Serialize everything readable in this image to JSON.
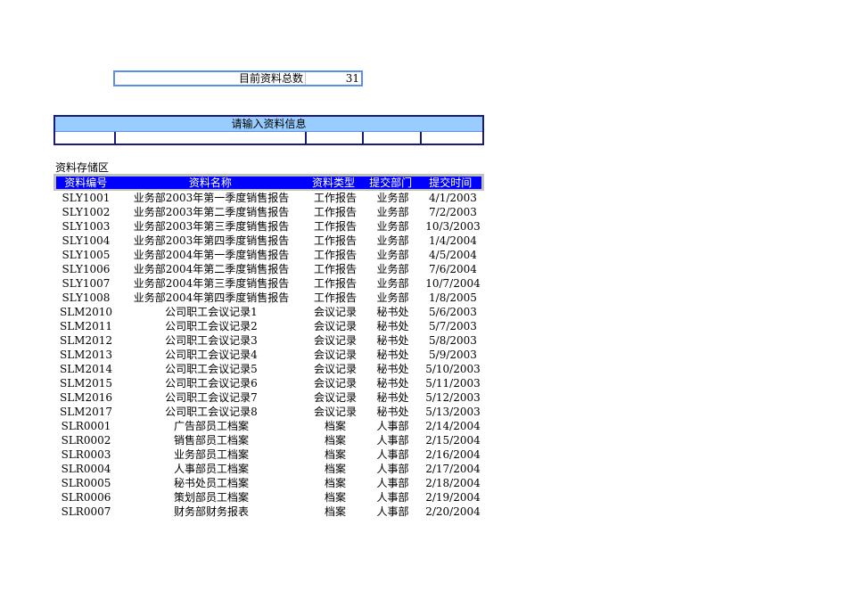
{
  "summary": {
    "label": "目前资料总数",
    "value": "31"
  },
  "input": {
    "title": "请输入资料信息"
  },
  "storage": {
    "title": "资料存储区",
    "headers": [
      "资料编号",
      "资料名称",
      "资料类型",
      "提交部门",
      "提交时间"
    ],
    "rows": [
      [
        "SLY1001",
        "业务部2003年第一季度销售报告",
        "工作报告",
        "业务部",
        "4/1/2003"
      ],
      [
        "SLY1002",
        "业务部2003年第二季度销售报告",
        "工作报告",
        "业务部",
        "7/2/2003"
      ],
      [
        "SLY1003",
        "业务部2003年第三季度销售报告",
        "工作报告",
        "业务部",
        "10/3/2003"
      ],
      [
        "SLY1004",
        "业务部2003年第四季度销售报告",
        "工作报告",
        "业务部",
        "1/4/2004"
      ],
      [
        "SLY1005",
        "业务部2004年第一季度销售报告",
        "工作报告",
        "业务部",
        "4/5/2004"
      ],
      [
        "SLY1006",
        "业务部2004年第二季度销售报告",
        "工作报告",
        "业务部",
        "7/6/2004"
      ],
      [
        "SLY1007",
        "业务部2004年第三季度销售报告",
        "工作报告",
        "业务部",
        "10/7/2004"
      ],
      [
        "SLY1008",
        "业务部2004年第四季度销售报告",
        "工作报告",
        "业务部",
        "1/8/2005"
      ],
      [
        "SLM2010",
        "公司职工会议记录1",
        "会议记录",
        "秘书处",
        "5/6/2003"
      ],
      [
        "SLM2011",
        "公司职工会议记录2",
        "会议记录",
        "秘书处",
        "5/7/2003"
      ],
      [
        "SLM2012",
        "公司职工会议记录3",
        "会议记录",
        "秘书处",
        "5/8/2003"
      ],
      [
        "SLM2013",
        "公司职工会议记录4",
        "会议记录",
        "秘书处",
        "5/9/2003"
      ],
      [
        "SLM2014",
        "公司职工会议记录5",
        "会议记录",
        "秘书处",
        "5/10/2003"
      ],
      [
        "SLM2015",
        "公司职工会议记录6",
        "会议记录",
        "秘书处",
        "5/11/2003"
      ],
      [
        "SLM2016",
        "公司职工会议记录7",
        "会议记录",
        "秘书处",
        "5/12/2003"
      ],
      [
        "SLM2017",
        "公司职工会议记录8",
        "会议记录",
        "秘书处",
        "5/13/2003"
      ],
      [
        "SLR0001",
        "广告部员工档案",
        "档案",
        "人事部",
        "2/14/2004"
      ],
      [
        "SLR0002",
        "销售部员工档案",
        "档案",
        "人事部",
        "2/15/2004"
      ],
      [
        "SLR0003",
        "业务部员工档案",
        "档案",
        "人事部",
        "2/16/2004"
      ],
      [
        "SLR0004",
        "人事部员工档案",
        "档案",
        "人事部",
        "2/17/2004"
      ],
      [
        "SLR0005",
        "秘书处员工档案",
        "档案",
        "人事部",
        "2/18/2004"
      ],
      [
        "SLR0006",
        "策划部员工档案",
        "档案",
        "人事部",
        "2/19/2004"
      ],
      [
        "SLR0007",
        "财务部财务报表",
        "档案",
        "人事部",
        "2/20/2004"
      ]
    ]
  },
  "colors": {
    "header_bg": "#0000ff",
    "input_title_bg": "#99ccff",
    "border": "#1a1a7a"
  }
}
